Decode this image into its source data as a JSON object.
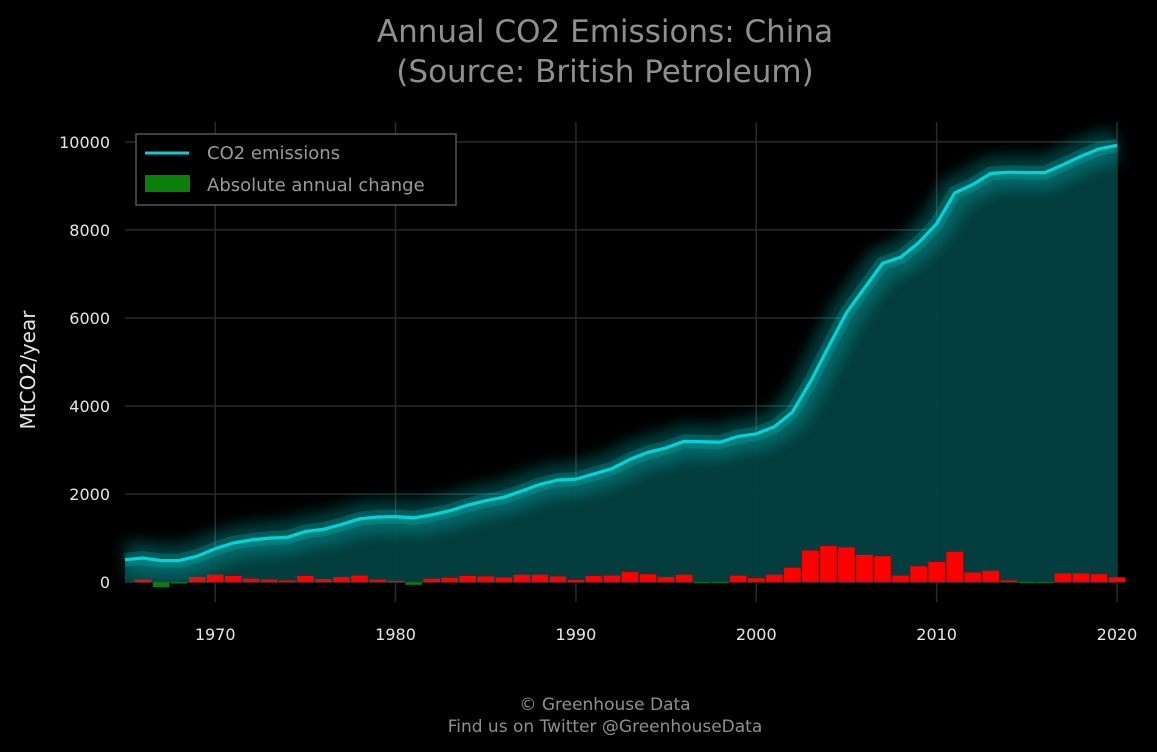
{
  "chart_data": {
    "type": "line",
    "title": "Annual CO2 Emissions: China",
    "subtitle": "(Source: British Petroleum)",
    "xlabel": "",
    "ylabel": "MtCO2/year",
    "xlim": [
      1965,
      2020
    ],
    "ylim": [
      -450,
      10450
    ],
    "x_ticks": [
      1970,
      1980,
      1990,
      2000,
      2010,
      2020
    ],
    "y_ticks": [
      0,
      2000,
      4000,
      6000,
      8000,
      10000
    ],
    "grid": true,
    "legend_position": "top-left",
    "x": [
      1965,
      1966,
      1967,
      1968,
      1969,
      1970,
      1971,
      1972,
      1973,
      1974,
      1975,
      1976,
      1977,
      1978,
      1979,
      1980,
      1981,
      1982,
      1983,
      1984,
      1985,
      1986,
      1987,
      1988,
      1989,
      1990,
      1991,
      1992,
      1993,
      1994,
      1995,
      1996,
      1997,
      1998,
      1999,
      2000,
      2001,
      2002,
      2003,
      2004,
      2005,
      2006,
      2007,
      2008,
      2009,
      2010,
      2011,
      2012,
      2013,
      2014,
      2015,
      2016,
      2017,
      2018,
      2019,
      2020
    ],
    "series": [
      {
        "name": "CO2 emissions",
        "kind": "line",
        "color": "#00d5d5",
        "values": [
          510,
          550,
          490,
          490,
          590,
          760,
          890,
          960,
          1000,
          1020,
          1150,
          1200,
          1310,
          1440,
          1480,
          1490,
          1460,
          1530,
          1620,
          1750,
          1850,
          1930,
          2070,
          2220,
          2320,
          2340,
          2460,
          2580,
          2790,
          2950,
          3050,
          3200,
          3190,
          3180,
          3310,
          3370,
          3530,
          3860,
          4550,
          5340,
          6120,
          6680,
          7240,
          7380,
          7710,
          8140,
          8840,
          9030,
          9280,
          9310,
          9300,
          9300,
          9480,
          9670,
          9840,
          9920
        ]
      },
      {
        "name": "Absolute annual change",
        "kind": "bar",
        "color_positive": "#ff0000",
        "color_negative": "#0a7a0a",
        "legend_color": "#0a7f0a",
        "values": [
          null,
          60,
          -110,
          -30,
          120,
          170,
          140,
          80,
          60,
          40,
          140,
          70,
          120,
          150,
          60,
          30,
          -60,
          80,
          100,
          140,
          130,
          110,
          170,
          170,
          130,
          50,
          140,
          150,
          230,
          180,
          120,
          170,
          -20,
          -20,
          150,
          90,
          170,
          330,
          720,
          820,
          790,
          620,
          590,
          150,
          360,
          460,
          690,
          220,
          260,
          40,
          -20,
          -20,
          200,
          200,
          180,
          110
        ]
      }
    ],
    "footer": {
      "line1": "© Greenhouse Data",
      "line2": "Find us on Twitter @GreenhouseData"
    },
    "colors": {
      "background": "#000000",
      "fill": "#034040",
      "grid": "#2a2a2a",
      "text": "#e6e6e6"
    }
  }
}
